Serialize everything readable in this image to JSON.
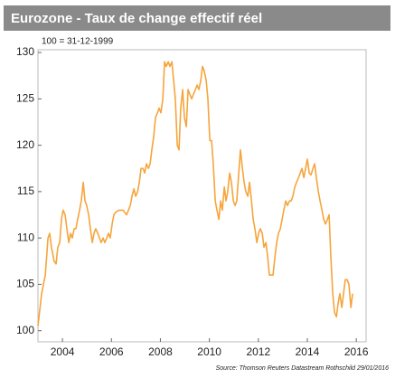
{
  "chart_data": {
    "type": "line",
    "title": "Eurozone - Taux de change effectif réel",
    "subtitle": "100 = 31-12-1999",
    "source": "Source: Thomson Reuters Datastream Rothschild 29/01/2016",
    "x": [
      2003.0,
      2003.15,
      2003.3,
      2003.41,
      2003.48,
      2003.55,
      2003.66,
      2003.74,
      2003.81,
      2003.89,
      2003.96,
      2004.03,
      2004.11,
      2004.18,
      2004.26,
      2004.33,
      2004.4,
      2004.48,
      2004.55,
      2004.62,
      2004.7,
      2004.77,
      2004.85,
      2004.92,
      2004.99,
      2005.07,
      2005.14,
      2005.22,
      2005.29,
      2005.36,
      2005.44,
      2005.51,
      2005.58,
      2005.66,
      2005.73,
      2005.81,
      2005.88,
      2005.95,
      2006.03,
      2006.1,
      2006.18,
      2006.32,
      2006.47,
      2006.62,
      2006.77,
      2006.84,
      2006.92,
      2006.99,
      2007.07,
      2007.14,
      2007.21,
      2007.29,
      2007.36,
      2007.43,
      2007.51,
      2007.58,
      2007.65,
      2007.73,
      2007.8,
      2007.88,
      2007.95,
      2008.02,
      2008.1,
      2008.17,
      2008.24,
      2008.32,
      2008.39,
      2008.47,
      2008.54,
      2008.61,
      2008.69,
      2008.76,
      2008.83,
      2008.91,
      2008.98,
      2009.06,
      2009.13,
      2009.2,
      2009.28,
      2009.35,
      2009.43,
      2009.5,
      2009.57,
      2009.65,
      2009.72,
      2009.79,
      2009.87,
      2009.94,
      2010.02,
      2010.09,
      2010.16,
      2010.24,
      2010.31,
      2010.39,
      2010.46,
      2010.53,
      2010.61,
      2010.68,
      2010.75,
      2010.83,
      2010.9,
      2010.98,
      2011.05,
      2011.12,
      2011.2,
      2011.27,
      2011.35,
      2011.42,
      2011.49,
      2011.57,
      2011.64,
      2011.72,
      2011.79,
      2011.86,
      2011.94,
      2012.01,
      2012.08,
      2012.16,
      2012.23,
      2012.31,
      2012.38,
      2012.45,
      2012.53,
      2012.6,
      2012.68,
      2012.75,
      2012.82,
      2012.9,
      2012.97,
      2013.04,
      2013.12,
      2013.19,
      2013.27,
      2013.34,
      2013.41,
      2013.49,
      2013.56,
      2013.64,
      2013.71,
      2013.78,
      2013.86,
      2013.93,
      2014.0,
      2014.08,
      2014.15,
      2014.23,
      2014.3,
      2014.37,
      2014.45,
      2014.52,
      2014.6,
      2014.67,
      2014.74,
      2014.82,
      2014.89,
      2014.96,
      2015.04,
      2015.11,
      2015.19,
      2015.26,
      2015.33,
      2015.41,
      2015.48,
      2015.55,
      2015.63,
      2015.7,
      2015.78,
      2015.85
    ],
    "series": [
      {
        "color": "#f5a53c",
        "values": [
          100.5,
          104,
          106,
          110,
          110.5,
          109,
          107.5,
          107.2,
          109,
          109.5,
          112,
          113,
          112.5,
          111,
          109.5,
          110.5,
          110,
          111,
          111,
          112,
          113,
          114,
          116,
          114,
          113.5,
          112.5,
          111,
          109.5,
          110.5,
          111,
          110.5,
          110,
          109.5,
          110,
          109.5,
          110,
          110.5,
          110,
          111.5,
          112.5,
          112.8,
          113,
          113,
          112.5,
          113.5,
          114.5,
          115.3,
          114.5,
          115,
          116,
          117.5,
          117.5,
          117,
          118,
          117.5,
          118,
          119.5,
          121,
          123,
          123.5,
          124,
          123.5,
          125,
          129,
          128.5,
          129,
          128.5,
          129,
          127,
          125,
          120,
          119.5,
          124,
          126,
          123,
          122,
          126,
          125.5,
          125,
          125.5,
          126,
          126.5,
          126,
          127,
          128.5,
          128,
          127,
          125,
          120.5,
          120.5,
          118,
          114,
          113,
          112,
          114,
          113,
          115.5,
          114,
          115,
          117,
          116,
          114,
          113.5,
          114,
          117,
          119.5,
          117.5,
          116,
          115,
          114.5,
          116,
          114,
          112,
          111,
          109.5,
          110.5,
          111,
          110.5,
          109,
          109.5,
          108,
          106,
          106,
          106,
          108,
          109.5,
          110.5,
          111,
          112,
          113,
          114,
          113.5,
          114,
          114,
          114.5,
          115.5,
          116,
          116.5,
          117,
          117.5,
          116.5,
          117.5,
          118.5,
          117,
          116.8,
          117.5,
          118,
          116.5,
          115,
          114,
          113,
          112,
          111.5,
          112,
          112.5,
          108,
          104,
          102,
          101.5,
          103,
          104,
          102.5,
          104,
          105.5,
          105.5,
          105,
          102.5,
          104
        ]
      }
    ],
    "xlim": [
      2003,
      2016.4
    ],
    "xticks": [
      2004,
      2006,
      2008,
      2010,
      2012,
      2014,
      2016
    ],
    "ylim": [
      98.8,
      130.3
    ],
    "yticks": [
      100,
      105,
      110,
      115,
      120,
      125,
      130
    ]
  }
}
